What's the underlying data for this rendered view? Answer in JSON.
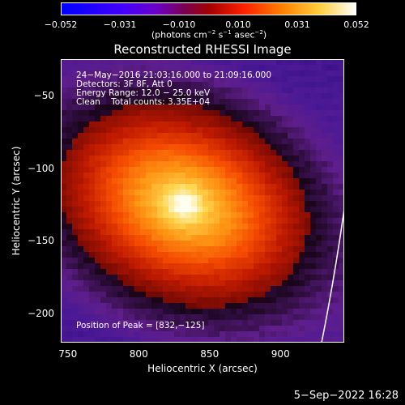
{
  "chart_data": {
    "type": "heatmap",
    "title": "Reconstructed RHESSI Image",
    "xlabel": "Heliocentric X (arcsec)",
    "ylabel": "Heliocentric Y (arcsec)",
    "xlim": [
      745,
      945
    ],
    "ylim": [
      -220,
      -25
    ],
    "x_ticks": [
      750,
      800,
      850,
      900
    ],
    "y_ticks": [
      -50,
      -100,
      -150,
      -200
    ],
    "colorbar": {
      "colormap": "hot",
      "range": [
        -0.052,
        0.052
      ],
      "ticks": [
        "−0.052",
        "−0.031",
        "−0.010",
        "0.010",
        "0.031",
        "0.052"
      ],
      "units_text": "(photons cm",
      "units_sup1": "−2",
      "units_mid1": " s",
      "units_sup2": "−1",
      "units_mid2": " asec",
      "units_sup3": "−2",
      "units_end": ")"
    },
    "annotations": {
      "time_range": "24−May−2016 21:03:16.000 to 21:09:16.000",
      "detectors": "Detectors: 3F 8F, Att 0",
      "energy_range": "Energy Range: 12.0 − 25.0 keV",
      "method_counts": "Clean    Total counts: 3.35E+04",
      "peak": "Position of Peak = [832,−125]"
    },
    "source": {
      "peak_x": 832,
      "peak_y": -125,
      "peak_value": 0.052
    },
    "grid": false
  },
  "footer": {
    "timestamp": "5−Sep−2022 16:28"
  },
  "colors": {
    "background": "#000000",
    "foreground": "#ffffff"
  }
}
